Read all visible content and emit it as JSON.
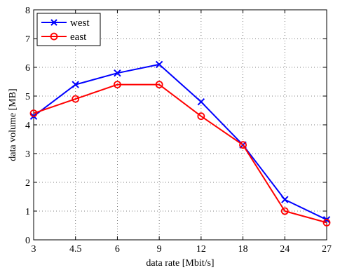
{
  "chart_data": {
    "type": "line",
    "title": "",
    "xlabel": "data rate [Mbit/s]",
    "ylabel": "data volume [MB]",
    "categories": [
      "3",
      "4.5",
      "6",
      "9",
      "12",
      "18",
      "24",
      "27"
    ],
    "y_ticks": [
      "0",
      "1",
      "2",
      "3",
      "4",
      "5",
      "6",
      "7",
      "8"
    ],
    "ylim": [
      0,
      8
    ],
    "grid": true,
    "legend_position": "top-left",
    "series": [
      {
        "name": "west",
        "color": "#0000ff",
        "marker": "x",
        "values": [
          4.3,
          5.4,
          5.8,
          6.1,
          4.8,
          3.3,
          1.4,
          0.7
        ]
      },
      {
        "name": "east",
        "color": "#ff0000",
        "marker": "o",
        "values": [
          4.4,
          4.9,
          5.4,
          5.4,
          4.3,
          3.3,
          1.0,
          0.6
        ]
      }
    ]
  }
}
